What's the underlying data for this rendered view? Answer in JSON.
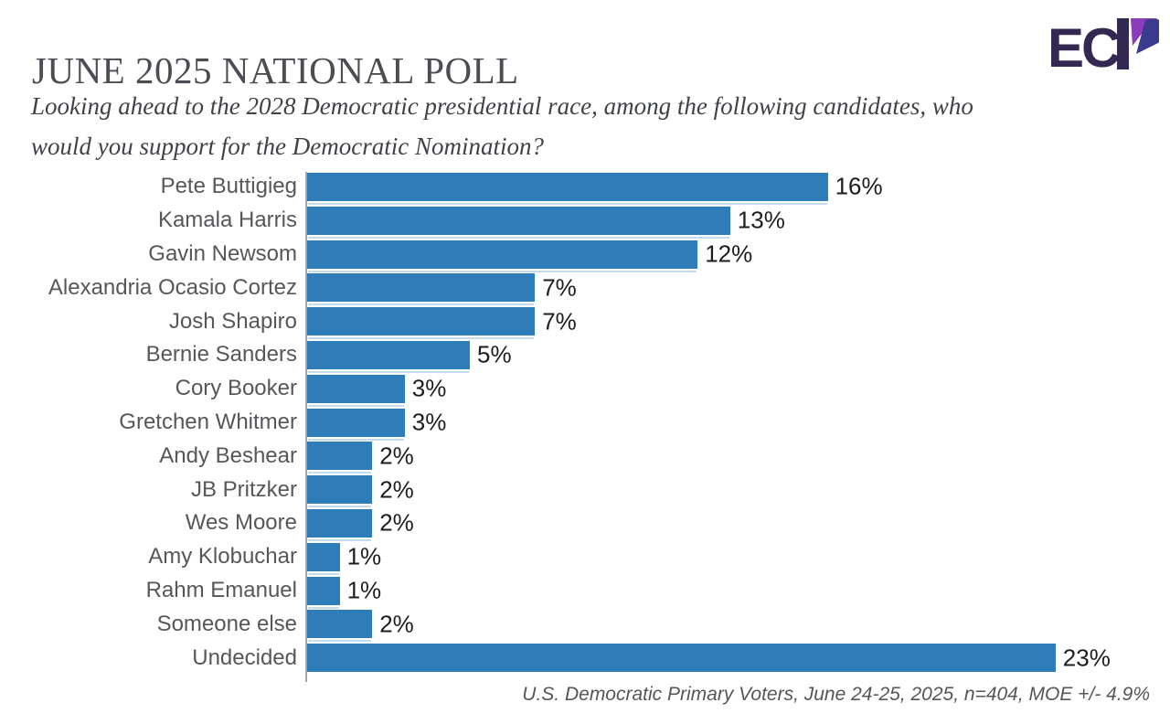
{
  "header": {
    "title": "JUNE 2025 NATIONAL POLL",
    "logo": {
      "name": "ECP",
      "text_letters": "EC",
      "dark_color": "#332852",
      "purple_color": "#8b3cba",
      "blue_color": "#3a3a8e"
    }
  },
  "question": {
    "full_text": "Looking ahead to the 2028 Democratic presidential race, among the following candidates, who would you support for the Democratic Nomination?",
    "lines": [
      "Looking ahead to the 2028 Democratic presidential race, among the following candidates, who",
      "would you support for the Democratic Nomination?"
    ]
  },
  "chart_data": {
    "type": "bar",
    "orientation": "horizontal",
    "title": "JUNE 2025 NATIONAL POLL",
    "categories": [
      "Pete Buttigieg",
      "Kamala Harris",
      "Gavin Newsom",
      "Alexandria Ocasio Cortez",
      "Josh Shapiro",
      "Bernie Sanders",
      "Cory Booker",
      "Gretchen Whitmer",
      "Andy Beshear",
      "JB Pritzker",
      "Wes Moore",
      "Amy Klobuchar",
      "Rahm Emanuel",
      "Someone else",
      "Undecided"
    ],
    "values": [
      16,
      13,
      12,
      7,
      7,
      5,
      3,
      3,
      2,
      2,
      2,
      1,
      1,
      2,
      23
    ],
    "unit": "%",
    "xlim": [
      0,
      23
    ],
    "grid": false,
    "legend": false,
    "bar_color": "#2e7db9",
    "axis_color": "#a6a6a6",
    "label_color": "#56575a",
    "value_color": "#1d1d1f"
  },
  "footnote": "U.S. Democratic Primary Voters, June 24-25, 2025, n=404, MOE +/- 4.9%"
}
